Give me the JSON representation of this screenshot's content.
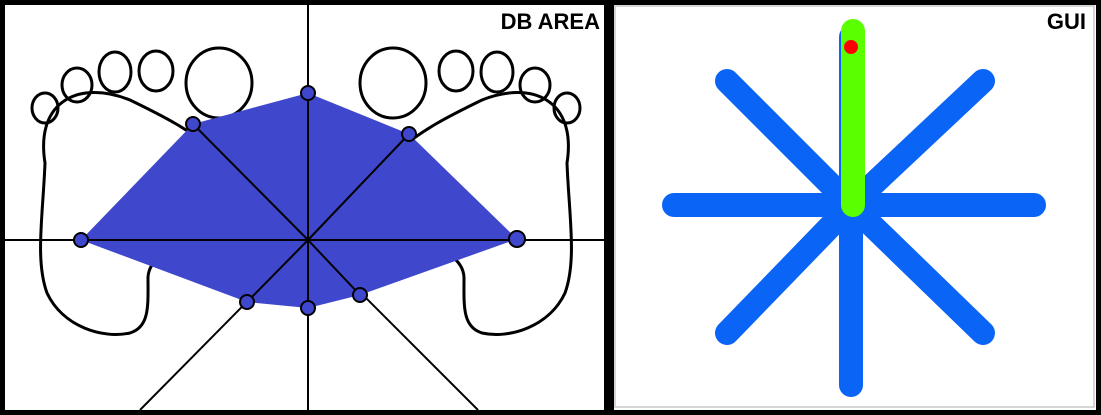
{
  "db_area": {
    "title": "DB AREA",
    "polygon_color": "#3f48cc",
    "point_color": "#3f48cc",
    "line_color": "#000000"
  },
  "gui": {
    "title": "GUI",
    "direction_color": "#0a64f5",
    "active_color": "#5aff00",
    "marker_color": "#ff0000",
    "frame_color": "#c8c8c8",
    "active_direction": "up"
  }
}
